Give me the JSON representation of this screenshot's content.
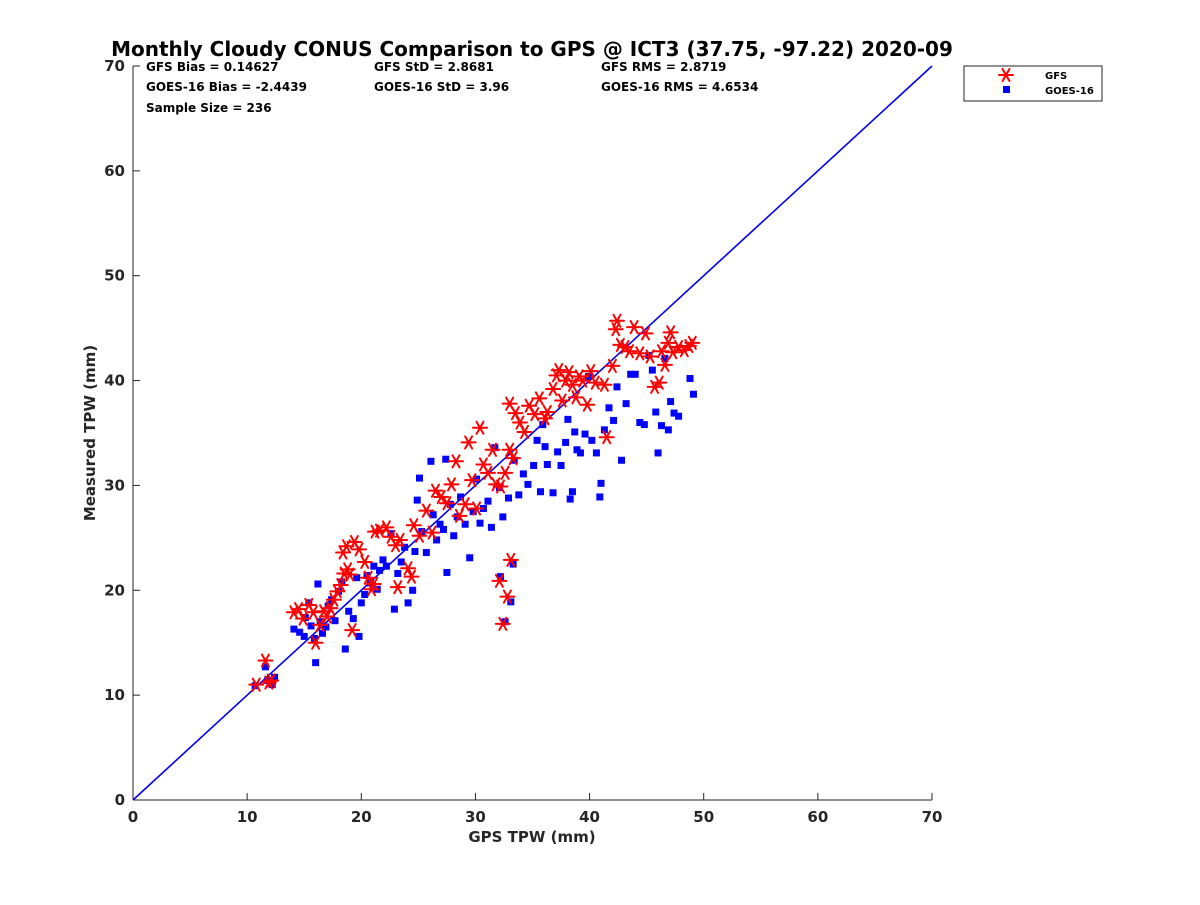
{
  "stats": {
    "gfs_bias": "GFS Bias = 0.14627",
    "goes_bias": "GOES-16 Bias = -2.4439",
    "sample_size": "Sample Size = 236",
    "gfs_std": "GFS StD = 2.8681",
    "goes_std": "GOES-16 StD = 3.96",
    "gfs_rms": "GFS RMS = 2.8719",
    "goes_rms": "GOES-16 RMS = 4.6534"
  },
  "chart_data": {
    "type": "scatter",
    "title": "Monthly Cloudy CONUS Comparison to GPS @ ICT3 (37.75, -97.22) 2020-09",
    "xlabel": "GPS TPW (mm)",
    "ylabel": "Measured TPW (mm)",
    "xlim": [
      0,
      70
    ],
    "ylim": [
      0,
      70
    ],
    "xticks": [
      0,
      10,
      20,
      30,
      40,
      50,
      60,
      70
    ],
    "yticks": [
      0,
      10,
      20,
      30,
      40,
      50,
      60,
      70
    ],
    "grid": false,
    "legend_position": "top-right, outside plot",
    "reference_line": {
      "x": [
        0,
        70
      ],
      "y": [
        0,
        70
      ],
      "color": "#0000ee"
    },
    "series": [
      {
        "name": "GFS",
        "marker": "asterisk",
        "color": "#ff0000",
        "points": [
          [
            10.8,
            11.0
          ],
          [
            11.6,
            13.3
          ],
          [
            11.9,
            11.2
          ],
          [
            12.1,
            11.4
          ],
          [
            14.1,
            17.9
          ],
          [
            14.5,
            18.2
          ],
          [
            14.9,
            17.3
          ],
          [
            15.4,
            18.6
          ],
          [
            15.8,
            17.9
          ],
          [
            16.0,
            15.0
          ],
          [
            16.4,
            16.7
          ],
          [
            16.7,
            18.0
          ],
          [
            17.0,
            17.5
          ],
          [
            17.3,
            18.3
          ],
          [
            17.6,
            19.1
          ],
          [
            17.9,
            19.9
          ],
          [
            18.2,
            20.5
          ],
          [
            18.5,
            21.6
          ],
          [
            18.8,
            22.0
          ],
          [
            19.0,
            21.5
          ],
          [
            18.4,
            23.6
          ],
          [
            18.7,
            24.2
          ],
          [
            19.4,
            24.6
          ],
          [
            19.8,
            23.9
          ],
          [
            20.3,
            22.7
          ],
          [
            20.6,
            21.2
          ],
          [
            20.9,
            20.1
          ],
          [
            21.1,
            20.6
          ],
          [
            21.2,
            25.6
          ],
          [
            21.6,
            25.7
          ],
          [
            22.2,
            26.0
          ],
          [
            22.6,
            25.1
          ],
          [
            23.0,
            24.3
          ],
          [
            23.4,
            24.8
          ],
          [
            23.2,
            20.3
          ],
          [
            19.2,
            16.2
          ],
          [
            24.1,
            22.1
          ],
          [
            24.4,
            21.3
          ],
          [
            24.6,
            26.2
          ],
          [
            25.1,
            25.2
          ],
          [
            25.7,
            27.6
          ],
          [
            26.2,
            25.5
          ],
          [
            26.5,
            29.5
          ],
          [
            27.0,
            28.9
          ],
          [
            27.5,
            28.3
          ],
          [
            27.9,
            30.1
          ],
          [
            28.3,
            32.3
          ],
          [
            28.6,
            27.1
          ],
          [
            29.1,
            28.2
          ],
          [
            29.4,
            34.1
          ],
          [
            29.7,
            30.5
          ],
          [
            30.1,
            27.8
          ],
          [
            30.4,
            35.5
          ],
          [
            30.7,
            32.0
          ],
          [
            31.1,
            31.2
          ],
          [
            31.5,
            33.4
          ],
          [
            31.8,
            30.1
          ],
          [
            32.2,
            29.9
          ],
          [
            32.6,
            31.2
          ],
          [
            33.0,
            33.4
          ],
          [
            33.3,
            32.6
          ],
          [
            33.0,
            37.8
          ],
          [
            33.5,
            36.9
          ],
          [
            33.9,
            36.0
          ],
          [
            34.3,
            35.1
          ],
          [
            34.7,
            37.6
          ],
          [
            35.2,
            36.8
          ],
          [
            35.6,
            38.3
          ],
          [
            36.1,
            36.4
          ],
          [
            36.3,
            37.0
          ],
          [
            36.8,
            39.2
          ],
          [
            37.1,
            40.5
          ],
          [
            37.3,
            41.0
          ],
          [
            37.6,
            38.1
          ],
          [
            37.9,
            40.0
          ],
          [
            38.2,
            40.8
          ],
          [
            38.5,
            39.6
          ],
          [
            38.8,
            38.4
          ],
          [
            39.1,
            40.4
          ],
          [
            39.4,
            40.0
          ],
          [
            39.8,
            37.7
          ],
          [
            40.1,
            40.9
          ],
          [
            40.5,
            39.8
          ],
          [
            41.3,
            39.6
          ],
          [
            41.5,
            34.6
          ],
          [
            42.0,
            41.4
          ],
          [
            42.3,
            44.9
          ],
          [
            42.4,
            45.7
          ],
          [
            42.7,
            43.4
          ],
          [
            43.1,
            43.2
          ],
          [
            43.5,
            42.8
          ],
          [
            43.9,
            45.1
          ],
          [
            44.4,
            42.6
          ],
          [
            44.9,
            44.5
          ],
          [
            45.3,
            42.3
          ],
          [
            45.7,
            39.4
          ],
          [
            46.1,
            39.8
          ],
          [
            46.3,
            42.8
          ],
          [
            46.6,
            41.5
          ],
          [
            46.9,
            43.6
          ],
          [
            47.1,
            44.6
          ],
          [
            47.3,
            42.7
          ],
          [
            47.8,
            43.2
          ],
          [
            48.3,
            42.9
          ],
          [
            48.7,
            43.3
          ],
          [
            49.0,
            43.6
          ],
          [
            32.1,
            20.9
          ],
          [
            32.4,
            16.8
          ],
          [
            32.8,
            19.4
          ],
          [
            33.1,
            22.9
          ]
        ]
      },
      {
        "name": "GOES-16",
        "marker": "square",
        "color": "#0000ff",
        "points": [
          [
            10.7,
            10.9
          ],
          [
            11.6,
            12.7
          ],
          [
            11.8,
            11.4
          ],
          [
            12.2,
            11.0
          ],
          [
            12.4,
            11.7
          ],
          [
            14.1,
            16.3
          ],
          [
            14.6,
            16.0
          ],
          [
            15.0,
            15.6
          ],
          [
            15.1,
            17.4
          ],
          [
            15.4,
            18.8
          ],
          [
            15.6,
            16.6
          ],
          [
            15.9,
            15.4
          ],
          [
            16.0,
            13.1
          ],
          [
            16.2,
            20.6
          ],
          [
            16.4,
            17.0
          ],
          [
            16.6,
            15.9
          ],
          [
            16.9,
            16.5
          ],
          [
            17.1,
            18.5
          ],
          [
            17.4,
            19.1
          ],
          [
            17.7,
            17.1
          ],
          [
            18.0,
            19.9
          ],
          [
            18.3,
            20.8
          ],
          [
            18.6,
            14.4
          ],
          [
            18.9,
            18.0
          ],
          [
            19.3,
            17.3
          ],
          [
            19.6,
            21.2
          ],
          [
            19.8,
            15.6
          ],
          [
            20.0,
            18.8
          ],
          [
            20.3,
            19.6
          ],
          [
            20.5,
            21.4
          ],
          [
            20.8,
            20.7
          ],
          [
            21.1,
            22.3
          ],
          [
            21.4,
            20.1
          ],
          [
            21.6,
            21.9
          ],
          [
            21.9,
            22.9
          ],
          [
            22.2,
            22.3
          ],
          [
            22.6,
            25.4
          ],
          [
            22.9,
            18.2
          ],
          [
            23.2,
            21.6
          ],
          [
            23.5,
            22.7
          ],
          [
            23.8,
            24.1
          ],
          [
            24.1,
            18.8
          ],
          [
            24.5,
            20.0
          ],
          [
            24.7,
            23.7
          ],
          [
            24.9,
            28.6
          ],
          [
            25.1,
            30.7
          ],
          [
            25.3,
            25.6
          ],
          [
            25.7,
            23.6
          ],
          [
            26.1,
            32.3
          ],
          [
            26.3,
            27.2
          ],
          [
            26.6,
            24.8
          ],
          [
            26.9,
            26.3
          ],
          [
            27.2,
            25.8
          ],
          [
            27.5,
            21.7
          ],
          [
            27.4,
            32.5
          ],
          [
            27.8,
            28.2
          ],
          [
            28.1,
            25.2
          ],
          [
            28.4,
            27.0
          ],
          [
            28.7,
            28.9
          ],
          [
            29.1,
            26.3
          ],
          [
            29.5,
            23.1
          ],
          [
            29.8,
            27.5
          ],
          [
            30.1,
            30.6
          ],
          [
            30.4,
            26.4
          ],
          [
            30.7,
            27.8
          ],
          [
            31.1,
            28.5
          ],
          [
            31.4,
            26.0
          ],
          [
            31.7,
            33.6
          ],
          [
            32.1,
            29.8
          ],
          [
            32.4,
            27.0
          ],
          [
            32.6,
            17.0
          ],
          [
            32.2,
            21.3
          ],
          [
            32.9,
            28.8
          ],
          [
            33.1,
            18.9
          ],
          [
            33.3,
            22.5
          ],
          [
            33.4,
            32.4
          ],
          [
            33.8,
            29.1
          ],
          [
            34.2,
            31.1
          ],
          [
            34.6,
            30.1
          ],
          [
            35.1,
            31.9
          ],
          [
            35.4,
            34.3
          ],
          [
            35.7,
            29.4
          ],
          [
            35.9,
            35.8
          ],
          [
            36.1,
            33.7
          ],
          [
            36.3,
            32.0
          ],
          [
            36.8,
            29.3
          ],
          [
            37.2,
            33.2
          ],
          [
            37.5,
            31.9
          ],
          [
            37.9,
            34.1
          ],
          [
            38.1,
            36.3
          ],
          [
            38.3,
            28.7
          ],
          [
            38.5,
            29.4
          ],
          [
            38.7,
            35.1
          ],
          [
            38.9,
            33.4
          ],
          [
            39.2,
            33.1
          ],
          [
            39.6,
            34.9
          ],
          [
            39.9,
            40.4
          ],
          [
            40.2,
            34.3
          ],
          [
            40.6,
            33.1
          ],
          [
            40.9,
            28.9
          ],
          [
            41.0,
            30.2
          ],
          [
            41.3,
            35.3
          ],
          [
            41.7,
            37.4
          ],
          [
            42.1,
            36.2
          ],
          [
            42.4,
            39.4
          ],
          [
            42.8,
            32.4
          ],
          [
            43.2,
            37.8
          ],
          [
            43.6,
            40.6
          ],
          [
            44.0,
            40.6
          ],
          [
            44.4,
            36.0
          ],
          [
            44.8,
            35.8
          ],
          [
            45.2,
            42.4
          ],
          [
            45.5,
            41.0
          ],
          [
            45.8,
            37.0
          ],
          [
            46.0,
            33.1
          ],
          [
            46.3,
            35.7
          ],
          [
            46.6,
            42.1
          ],
          [
            46.9,
            35.3
          ],
          [
            47.1,
            38.0
          ],
          [
            47.4,
            36.9
          ],
          [
            47.8,
            36.6
          ],
          [
            48.8,
            40.2
          ],
          [
            49.1,
            38.7
          ]
        ]
      }
    ]
  }
}
